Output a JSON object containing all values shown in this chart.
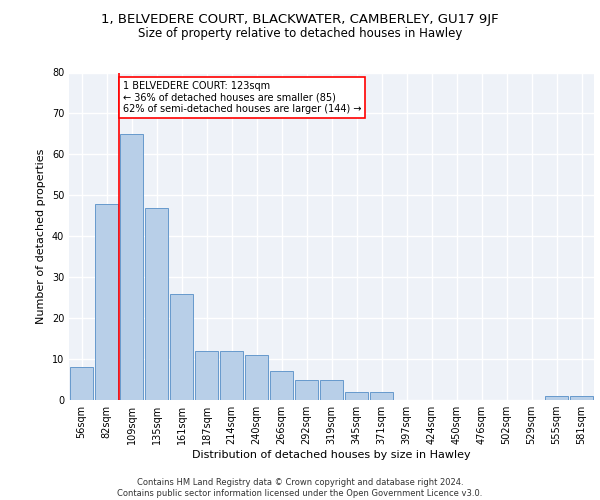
{
  "title1": "1, BELVEDERE COURT, BLACKWATER, CAMBERLEY, GU17 9JF",
  "title2": "Size of property relative to detached houses in Hawley",
  "xlabel": "Distribution of detached houses by size in Hawley",
  "ylabel": "Number of detached properties",
  "bar_labels": [
    "56sqm",
    "82sqm",
    "109sqm",
    "135sqm",
    "161sqm",
    "187sqm",
    "214sqm",
    "240sqm",
    "266sqm",
    "292sqm",
    "319sqm",
    "345sqm",
    "371sqm",
    "397sqm",
    "424sqm",
    "450sqm",
    "476sqm",
    "502sqm",
    "529sqm",
    "555sqm",
    "581sqm"
  ],
  "bar_values": [
    8,
    48,
    65,
    47,
    26,
    12,
    12,
    11,
    7,
    5,
    5,
    2,
    2,
    0,
    0,
    0,
    0,
    0,
    0,
    1,
    1
  ],
  "bar_color": "#b8cfe8",
  "bar_edge_color": "#6699cc",
  "vline_x": 1.5,
  "annotation_text": "1 BELVEDERE COURT: 123sqm\n← 36% of detached houses are smaller (85)\n62% of semi-detached houses are larger (144) →",
  "annotation_box_color": "white",
  "annotation_box_edge_color": "red",
  "vline_color": "red",
  "ylim": [
    0,
    80
  ],
  "yticks": [
    0,
    10,
    20,
    30,
    40,
    50,
    60,
    70,
    80
  ],
  "background_color": "#eef2f8",
  "grid_color": "white",
  "footer1": "Contains HM Land Registry data © Crown copyright and database right 2024.",
  "footer2": "Contains public sector information licensed under the Open Government Licence v3.0.",
  "title1_fontsize": 9.5,
  "title2_fontsize": 8.5,
  "xlabel_fontsize": 8,
  "ylabel_fontsize": 8,
  "tick_fontsize": 7,
  "annotation_fontsize": 7,
  "footer_fontsize": 6
}
